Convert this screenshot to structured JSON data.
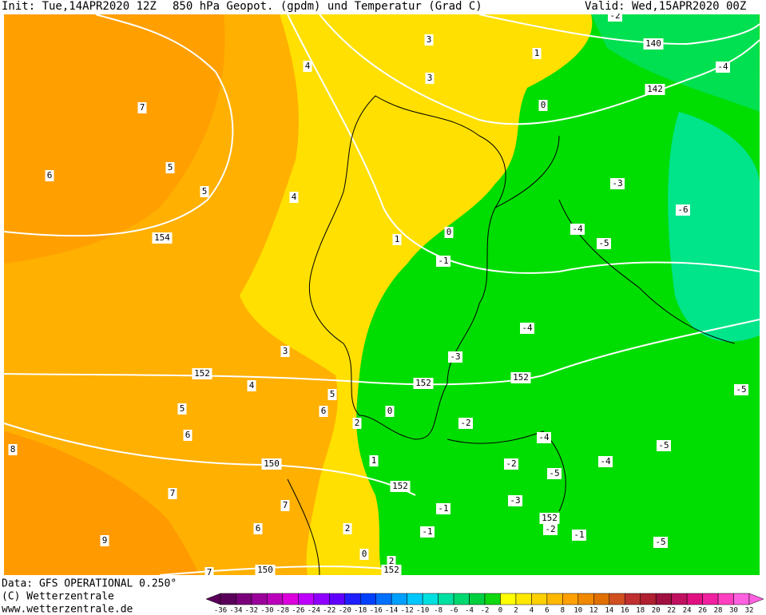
{
  "header": {
    "init": "Init: Tue,14APR2020 12Z",
    "title": "850 hPa Geopot. (gpdm) und Temperatur (Grad C)",
    "valid": "Valid: Wed,15APR2020 00Z"
  },
  "map": {
    "labels": [
      "-2",
      "140",
      "-4",
      "142",
      "1",
      "0",
      "3",
      "3",
      "4",
      "7",
      "5",
      "6",
      "5",
      "4",
      "154",
      "1",
      "0",
      "-1",
      "-3",
      "-6",
      "-4",
      "-5",
      "-4",
      "-3",
      "3",
      "152",
      "152",
      "152",
      "4",
      "5",
      "5",
      "6",
      "0",
      "2",
      "-2",
      "-5",
      "6",
      "-4",
      "-5",
      "-4",
      "-2",
      "-5",
      "8",
      "150",
      "1",
      "7",
      "152",
      "-3",
      "7",
      "-1",
      "152",
      "6",
      "-2",
      "-1",
      "-1",
      "2",
      "9",
      "-5",
      "0",
      "2",
      "150",
      "152",
      "7"
    ]
  },
  "footer": {
    "data": "Data: GFS OPERATIONAL 0.250°",
    "copyright": "(C) Wetterzentrale",
    "url": "www.wetterzentrale.de"
  },
  "colorbar": {
    "ticks": [
      -36,
      -34,
      -32,
      -30,
      -28,
      -26,
      -24,
      -22,
      -20,
      -18,
      -16,
      -14,
      -12,
      -10,
      -8,
      -6,
      -4,
      -2,
      0,
      2,
      4,
      6,
      8,
      10,
      12,
      14,
      16,
      18,
      20,
      22,
      24,
      26,
      28,
      30,
      32
    ],
    "colors": [
      "#5a005a",
      "#7a007a",
      "#9a009a",
      "#bb00bb",
      "#dd00dd",
      "#c000ff",
      "#9000ff",
      "#6000ff",
      "#2020ff",
      "#0040ff",
      "#0070ff",
      "#00a0ff",
      "#00c8ff",
      "#00e0e0",
      "#00e0a0",
      "#00d870",
      "#00d040",
      "#10d810",
      "#ffff00",
      "#ffe800",
      "#ffd000",
      "#ffb800",
      "#ffa000",
      "#f08800",
      "#e07000",
      "#d05020",
      "#c03030",
      "#b02030",
      "#a01040",
      "#c01060",
      "#e01080",
      "#f020a0",
      "#ff40c0",
      "#ff60e0"
    ]
  }
}
